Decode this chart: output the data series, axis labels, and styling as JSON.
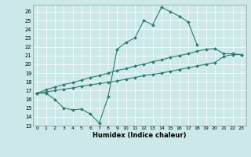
{
  "xlabel": "Humidex (Indice chaleur)",
  "bg_color": "#cce8e8",
  "line_color": "#2e7b70",
  "xlim": [
    -0.5,
    23.5
  ],
  "ylim": [
    13,
    26.8
  ],
  "yticks": [
    13,
    14,
    15,
    16,
    17,
    18,
    19,
    20,
    21,
    22,
    23,
    24,
    25,
    26
  ],
  "xticks": [
    0,
    1,
    2,
    3,
    4,
    5,
    6,
    7,
    8,
    9,
    10,
    11,
    12,
    13,
    14,
    15,
    16,
    17,
    18,
    19,
    20,
    21,
    22,
    23
  ],
  "line1_x": [
    0,
    1,
    2,
    3,
    4,
    5,
    6,
    7,
    8,
    9,
    10,
    11,
    12,
    13,
    14,
    15,
    16,
    17,
    18
  ],
  "line1_y": [
    16.7,
    16.7,
    16.0,
    15.0,
    14.8,
    14.9,
    14.3,
    13.3,
    16.3,
    21.7,
    22.5,
    23.0,
    25.0,
    24.5,
    26.5,
    26.0,
    25.5,
    24.8,
    22.2
  ],
  "line2_x": [
    0,
    1,
    2,
    3,
    4,
    5,
    6,
    7,
    8,
    9,
    10,
    11,
    12,
    13,
    14,
    15,
    16,
    17,
    18,
    19,
    20,
    21,
    22,
    23
  ],
  "line2_y": [
    16.7,
    17.1,
    17.4,
    17.7,
    17.9,
    18.2,
    18.5,
    18.7,
    19.0,
    19.3,
    19.5,
    19.8,
    20.0,
    20.3,
    20.5,
    20.8,
    21.0,
    21.2,
    21.5,
    21.7,
    21.8,
    21.2,
    21.2,
    21.1
  ],
  "line3_x": [
    0,
    1,
    2,
    3,
    4,
    5,
    6,
    7,
    8,
    9,
    10,
    11,
    12,
    13,
    14,
    15,
    16,
    17,
    18,
    19,
    20,
    21,
    22,
    23
  ],
  "line3_y": [
    16.7,
    16.85,
    17.0,
    17.15,
    17.3,
    17.5,
    17.65,
    17.8,
    17.95,
    18.1,
    18.3,
    18.5,
    18.7,
    18.85,
    19.0,
    19.2,
    19.4,
    19.6,
    19.8,
    20.0,
    20.2,
    20.9,
    21.1,
    21.1
  ]
}
